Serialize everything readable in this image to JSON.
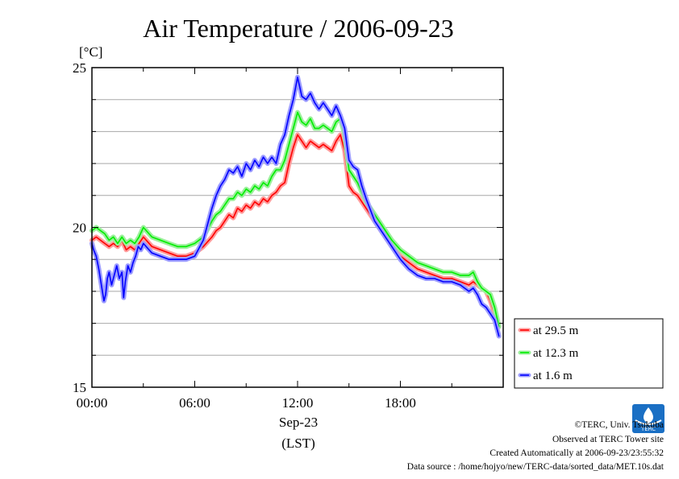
{
  "chart_data": {
    "type": "line",
    "title": "Air Temperature / 2006-09-23",
    "unit_label": "[°C]",
    "xlabel_date": "Sep-23",
    "xlabel_tz": "(LST)",
    "xlim": [
      0,
      24
    ],
    "ylim": [
      15,
      25
    ],
    "x_ticks": [
      {
        "value": 0,
        "label": "00:00"
      },
      {
        "value": 6,
        "label": "06:00"
      },
      {
        "value": 12,
        "label": "12:00"
      },
      {
        "value": 18,
        "label": "18:00"
      }
    ],
    "y_ticks": [
      {
        "value": 15,
        "label": "15"
      },
      {
        "value": 20,
        "label": "20"
      },
      {
        "value": 25,
        "label": "25"
      }
    ],
    "grid": true,
    "legend_position": "right",
    "series": [
      {
        "name": "at 29.5 m",
        "color": "#ff0000",
        "halo": "#ff9c9c",
        "x": [
          0,
          0.25,
          0.5,
          0.75,
          1,
          1.25,
          1.5,
          1.75,
          2,
          2.25,
          2.5,
          2.75,
          3,
          3.5,
          4,
          4.5,
          5,
          5.5,
          6,
          6.5,
          7,
          7.25,
          7.5,
          7.75,
          8,
          8.25,
          8.5,
          8.75,
          9,
          9.25,
          9.5,
          9.75,
          10,
          10.25,
          10.5,
          10.75,
          11,
          11.25,
          11.5,
          11.75,
          12,
          12.25,
          12.5,
          12.75,
          13,
          13.25,
          13.5,
          13.75,
          14,
          14.25,
          14.5,
          14.75,
          15,
          15.25,
          15.5,
          15.75,
          16,
          16.5,
          17,
          17.5,
          18,
          18.5,
          19,
          19.5,
          20,
          20.5,
          21,
          21.5,
          22,
          22.25,
          22.5,
          22.75,
          23,
          23.25,
          23.5,
          23.75
        ],
        "y": [
          19.6,
          19.7,
          19.6,
          19.5,
          19.4,
          19.5,
          19.4,
          19.6,
          19.3,
          19.4,
          19.3,
          19.5,
          19.7,
          19.4,
          19.3,
          19.2,
          19.1,
          19.1,
          19.2,
          19.4,
          19.7,
          19.9,
          20.0,
          20.2,
          20.4,
          20.3,
          20.6,
          20.5,
          20.7,
          20.6,
          20.8,
          20.7,
          20.9,
          20.8,
          21.0,
          21.1,
          21.3,
          21.4,
          22.0,
          22.5,
          22.9,
          22.7,
          22.5,
          22.7,
          22.6,
          22.5,
          22.6,
          22.5,
          22.4,
          22.7,
          22.9,
          22.4,
          21.3,
          21.1,
          21.0,
          20.8,
          20.6,
          20.2,
          19.8,
          19.4,
          19.1,
          18.9,
          18.7,
          18.6,
          18.5,
          18.4,
          18.4,
          18.3,
          18.2,
          18.3,
          18.2,
          18.1,
          18.0,
          17.7,
          17.3,
          16.9
        ]
      },
      {
        "name": "at 12.3 m",
        "color": "#00ee00",
        "halo": "#9cf09c",
        "x": [
          0,
          0.25,
          0.5,
          0.75,
          1,
          1.25,
          1.5,
          1.75,
          2,
          2.25,
          2.5,
          2.75,
          3,
          3.5,
          4,
          4.5,
          5,
          5.5,
          6,
          6.5,
          7,
          7.25,
          7.5,
          7.75,
          8,
          8.25,
          8.5,
          8.75,
          9,
          9.25,
          9.5,
          9.75,
          10,
          10.25,
          10.5,
          10.75,
          11,
          11.25,
          11.5,
          11.75,
          12,
          12.25,
          12.5,
          12.75,
          13,
          13.25,
          13.5,
          13.75,
          14,
          14.25,
          14.5,
          14.75,
          15,
          15.25,
          15.5,
          15.75,
          16,
          16.5,
          17,
          17.5,
          18,
          18.5,
          19,
          19.5,
          20,
          20.5,
          21,
          21.5,
          22,
          22.25,
          22.5,
          22.75,
          23,
          23.25,
          23.5,
          23.75
        ],
        "y": [
          19.9,
          20.0,
          19.9,
          19.8,
          19.6,
          19.7,
          19.5,
          19.7,
          19.5,
          19.6,
          19.5,
          19.7,
          20.0,
          19.7,
          19.6,
          19.5,
          19.4,
          19.4,
          19.5,
          19.7,
          20.2,
          20.4,
          20.5,
          20.7,
          20.9,
          20.9,
          21.1,
          21.0,
          21.2,
          21.1,
          21.3,
          21.2,
          21.4,
          21.3,
          21.6,
          21.8,
          21.8,
          22.1,
          22.6,
          23.1,
          23.6,
          23.3,
          23.2,
          23.4,
          23.1,
          23.1,
          23.2,
          23.1,
          23.0,
          23.3,
          23.4,
          22.9,
          21.8,
          21.6,
          21.4,
          21.1,
          20.8,
          20.4,
          20.0,
          19.6,
          19.3,
          19.1,
          18.9,
          18.8,
          18.7,
          18.6,
          18.6,
          18.5,
          18.5,
          18.6,
          18.3,
          18.1,
          18.0,
          17.9,
          17.5,
          16.9
        ]
      },
      {
        "name": "at 1.6 m",
        "color": "#0000ff",
        "halo": "#9c9cff",
        "x": [
          0,
          0.1,
          0.25,
          0.4,
          0.55,
          0.7,
          0.8,
          0.9,
          1.0,
          1.15,
          1.3,
          1.45,
          1.6,
          1.75,
          1.85,
          1.95,
          2.1,
          2.25,
          2.4,
          2.55,
          2.7,
          2.85,
          3,
          3.5,
          4,
          4.5,
          5,
          5.5,
          6,
          6.5,
          7,
          7.25,
          7.5,
          7.75,
          8,
          8.25,
          8.5,
          8.75,
          9,
          9.25,
          9.5,
          9.75,
          10,
          10.25,
          10.5,
          10.75,
          11,
          11.25,
          11.5,
          11.75,
          12,
          12.25,
          12.5,
          12.75,
          13,
          13.25,
          13.5,
          13.75,
          14,
          14.25,
          14.5,
          14.75,
          15,
          15.25,
          15.5,
          15.75,
          16,
          16.5,
          17,
          17.5,
          18,
          18.5,
          19,
          19.5,
          20,
          20.5,
          21,
          21.5,
          22,
          22.25,
          22.5,
          22.75,
          23,
          23.25,
          23.5,
          23.75
        ],
        "y": [
          19.5,
          19.3,
          19.1,
          18.7,
          18.2,
          17.7,
          17.9,
          18.4,
          18.6,
          18.2,
          18.5,
          18.8,
          18.4,
          18.6,
          17.8,
          18.3,
          18.8,
          18.6,
          18.9,
          19.1,
          19.4,
          19.3,
          19.5,
          19.2,
          19.1,
          19.0,
          19.0,
          19.0,
          19.1,
          19.6,
          20.6,
          21.0,
          21.3,
          21.5,
          21.8,
          21.7,
          21.9,
          21.6,
          22.0,
          21.8,
          22.1,
          21.9,
          22.2,
          22.0,
          22.2,
          22.0,
          22.6,
          22.9,
          23.5,
          24.0,
          24.7,
          24.1,
          24.0,
          24.2,
          23.9,
          23.7,
          23.9,
          23.7,
          23.5,
          23.8,
          23.5,
          23.1,
          22.1,
          21.9,
          21.8,
          21.3,
          20.9,
          20.2,
          19.8,
          19.4,
          19.0,
          18.7,
          18.5,
          18.4,
          18.4,
          18.3,
          18.3,
          18.2,
          18.0,
          18.1,
          17.9,
          17.6,
          17.5,
          17.3,
          17.1,
          16.6
        ]
      }
    ]
  },
  "footer": {
    "copyright": "©TERC, Univ. Tsukuba",
    "observed": "Observed at TERC Tower site",
    "created": "Created Automatically at 2006-09-23/23:55:32",
    "source": "Data source : /home/hojyo/new/TERC-data/sorted_data/MET.10s.dat",
    "logo_text": "TERC"
  }
}
